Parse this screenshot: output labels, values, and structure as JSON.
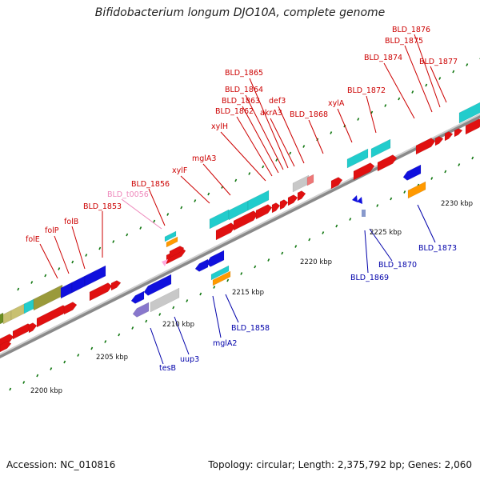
{
  "title": "Bifidobacterium longum DJO10A, complete genome",
  "accession": "Accession: NC_010816",
  "summary": "Topology: circular; Length: 2,375,792 bp; Genes: 2,060",
  "colors": {
    "forward_label": "#cc0000",
    "reverse_label": "#0000aa",
    "trna_label": "#ee88bb",
    "cds_red": "#e01010",
    "blue": "#1010dd",
    "cyan": "#22cccc",
    "orange": "#ff9900",
    "grey": "#c8c8c8",
    "olive": "#9a9a3a",
    "khaki": "#c8c070",
    "green_dark": "#6b8e23",
    "purple": "#8877cc",
    "tick_green": "#117711"
  },
  "scale_labels": [
    "2200 kbp",
    "2205 kbp",
    "2210 kbp",
    "2215 kbp",
    "2220 kbp",
    "2225 kbp",
    "2230 kbp"
  ],
  "forward_labels": [
    "folE",
    "folP",
    "folB",
    "BLD_1853",
    "BLD_1856",
    "xylF",
    "mglA3",
    "xylH",
    "BLD_1862",
    "BLD_1863",
    "BLD_1864",
    "BLD_1865",
    "akrA3",
    "def3",
    "BLD_1868",
    "xylA",
    "BLD_1872",
    "BLD_1874",
    "BLD_1875",
    "BLD_1876",
    "BLD_1877"
  ],
  "trna_labels": [
    "BLD_t0056"
  ],
  "reverse_labels": [
    "tesB",
    "uup3",
    "mglA2",
    "BLD_1858",
    "BLD_1869",
    "BLD_1870",
    "BLD_1873"
  ],
  "mid_label": "2225 kbp"
}
